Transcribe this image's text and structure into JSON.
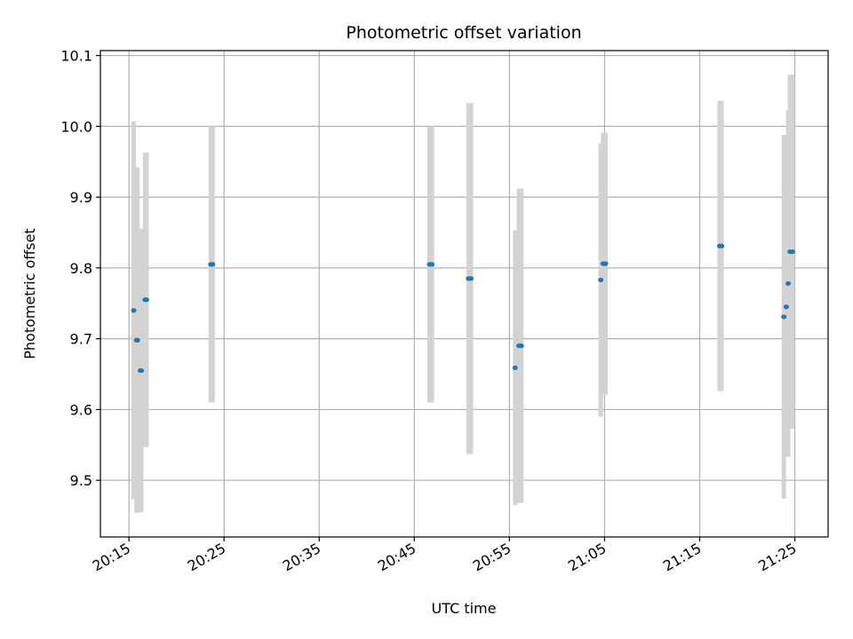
{
  "chart_data": {
    "type": "scatter",
    "title": "Photometric offset variation",
    "xlabel": "UTC time",
    "ylabel": "Photometric offset",
    "grid": true,
    "x_ticks": [
      "20:15",
      "20:25",
      "20:35",
      "20:45",
      "20:55",
      "21:05",
      "21:15",
      "21:25"
    ],
    "x_tick_minutes": [
      0,
      10,
      20,
      30,
      40,
      50,
      60,
      70
    ],
    "xlim_minutes": [
      -3,
      73.5
    ],
    "y_ticks": [
      "9.5",
      "9.6",
      "9.7",
      "9.8",
      "9.9",
      "10.0",
      "10.1"
    ],
    "ylim": [
      9.42,
      10.107
    ],
    "colors": {
      "point": "#1f77b4",
      "errorbar": "#d3d3d3",
      "grid": "#b0b0b0"
    },
    "points": [
      {
        "t": 0.5,
        "y": 9.74,
        "err": 0.267
      },
      {
        "t": 0.8,
        "y": 9.698,
        "err": 0.244
      },
      {
        "t": 0.9,
        "y": 9.698,
        "err": 0.244
      },
      {
        "t": 1.2,
        "y": 9.655,
        "err": 0.2
      },
      {
        "t": 1.3,
        "y": 9.655,
        "err": 0.2
      },
      {
        "t": 1.7,
        "y": 9.755,
        "err": 0.208
      },
      {
        "t": 1.85,
        "y": 9.755,
        "err": 0.208
      },
      {
        "t": 8.6,
        "y": 9.805,
        "err": 0.195
      },
      {
        "t": 8.8,
        "y": 9.805,
        "err": 0.195
      },
      {
        "t": 31.6,
        "y": 9.805,
        "err": 0.195
      },
      {
        "t": 31.85,
        "y": 9.805,
        "err": 0.195
      },
      {
        "t": 35.7,
        "y": 9.785,
        "err": 0.248
      },
      {
        "t": 35.95,
        "y": 9.785,
        "err": 0.248
      },
      {
        "t": 40.6,
        "y": 9.659,
        "err": 0.194
      },
      {
        "t": 41.0,
        "y": 9.69,
        "err": 0.222
      },
      {
        "t": 41.25,
        "y": 9.69,
        "err": 0.222
      },
      {
        "t": 49.6,
        "y": 9.783,
        "err": 0.193
      },
      {
        "t": 49.85,
        "y": 9.806,
        "err": 0.185
      },
      {
        "t": 50.1,
        "y": 9.806,
        "err": 0.185
      },
      {
        "t": 62.1,
        "y": 9.831,
        "err": 0.205
      },
      {
        "t": 62.3,
        "y": 9.831,
        "err": 0.205
      },
      {
        "t": 68.85,
        "y": 9.731,
        "err": 0.257
      },
      {
        "t": 69.1,
        "y": 9.745,
        "err": 0.21
      },
      {
        "t": 69.3,
        "y": 9.778,
        "err": 0.245
      },
      {
        "t": 69.5,
        "y": 9.823,
        "err": 0.25
      },
      {
        "t": 69.75,
        "y": 9.823,
        "err": 0.25
      }
    ]
  }
}
